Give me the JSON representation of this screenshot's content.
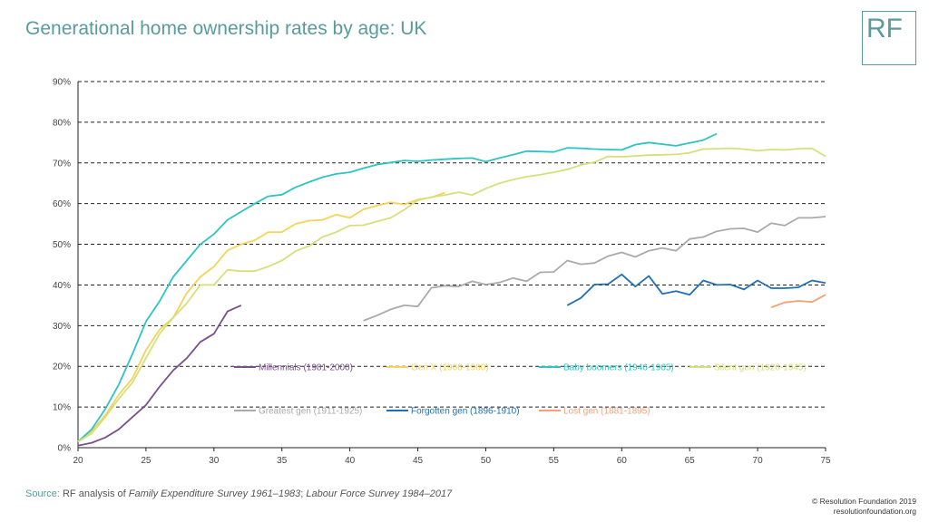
{
  "header": {
    "title": "Generational home ownership rates by age: UK",
    "logo": "RF"
  },
  "footer": {
    "source_label": "Source:",
    "source_text": "RF analysis of ",
    "source_italic_1": "Family Expenditure Survey 1961–1983",
    "source_sep": "; ",
    "source_italic_2": "Labour Force Survey 1984–2017",
    "copyright": "© Resolution Foundation 2019",
    "website": "resolutionfoundation.org"
  },
  "chart_data": {
    "type": "line",
    "title": "Generational home ownership rates by age: UK",
    "xlabel": "",
    "ylabel": "",
    "xlim": [
      20,
      75
    ],
    "ylim": [
      0,
      90
    ],
    "xticks": [
      20,
      25,
      30,
      35,
      40,
      45,
      50,
      55,
      60,
      65,
      70,
      75
    ],
    "yticks": [
      0,
      10,
      20,
      30,
      40,
      50,
      60,
      70,
      80,
      90
    ],
    "ytick_labels": [
      "0%",
      "10%",
      "20%",
      "30%",
      "40%",
      "50%",
      "60%",
      "70%",
      "80%",
      "90%"
    ],
    "grid": "horizontal dashed",
    "legend": "inside-bottom",
    "series": [
      {
        "name": "Millennials (1981-2000)",
        "color": "#7b4f8c",
        "x": [
          20,
          21,
          22,
          23,
          24,
          25,
          26,
          27,
          28,
          29,
          30,
          31,
          32
        ],
        "y": [
          0.5,
          1.2,
          2.5,
          4.5,
          7.5,
          10.5,
          15,
          19,
          22,
          26,
          28,
          33.5,
          35
        ]
      },
      {
        "name": "Gen X (1966-1980)",
        "color": "#f5d35a",
        "x": [
          20,
          21,
          22,
          23,
          24,
          25,
          26,
          27,
          28,
          29,
          30,
          31,
          32,
          33,
          34,
          35,
          36,
          37,
          38,
          39,
          40,
          41,
          42,
          43,
          44,
          45,
          46,
          47
        ],
        "y": [
          1.5,
          4,
          8,
          13,
          17,
          24,
          29,
          32,
          38,
          42,
          44.5,
          48.5,
          50,
          51,
          53,
          53,
          55,
          55.8,
          56,
          57.3,
          56.5,
          58.6,
          59.5,
          60.3,
          59.8,
          61,
          61.5,
          62.7
        ]
      },
      {
        "name": "Baby boomers (1946-1965)",
        "color": "#2ec4c4",
        "x": [
          20,
          21,
          22,
          23,
          24,
          25,
          26,
          27,
          28,
          29,
          30,
          31,
          32,
          33,
          34,
          35,
          36,
          37,
          38,
          39,
          40,
          41,
          42,
          43,
          44,
          45,
          46,
          47,
          48,
          49,
          50,
          51,
          52,
          53,
          54,
          55,
          56,
          57,
          58,
          59,
          60,
          61,
          62,
          63,
          64,
          65,
          66,
          67
        ],
        "y": [
          1.5,
          4.5,
          9.5,
          15.5,
          23,
          31,
          36,
          42,
          46,
          50,
          52.5,
          56,
          58,
          60,
          61.8,
          62.2,
          64,
          65.3,
          66.5,
          67.3,
          67.7,
          68.7,
          69.6,
          70.1,
          70.6,
          70.4,
          70.7,
          70.9,
          71.1,
          71.2,
          70.3,
          71.2,
          72,
          72.9,
          72.8,
          72.7,
          73.7,
          73.6,
          73.4,
          73.3,
          73.2,
          74.5,
          75,
          74.6,
          74.2,
          74.9,
          75.6,
          77.2
        ]
      },
      {
        "name": "Silent gen (1926-1945)",
        "color": "#d4e07a",
        "x": [
          20,
          21,
          22,
          23,
          24,
          25,
          26,
          27,
          28,
          29,
          30,
          31,
          32,
          33,
          34,
          35,
          36,
          37,
          38,
          39,
          40,
          41,
          42,
          43,
          44,
          45,
          46,
          47,
          48,
          49,
          50,
          51,
          52,
          53,
          54,
          55,
          56,
          57,
          58,
          59,
          60,
          61,
          62,
          63,
          64,
          65,
          66,
          67,
          68,
          69,
          70,
          71,
          72,
          73,
          74,
          75
        ],
        "y": [
          1.5,
          3.5,
          7.5,
          12,
          16,
          22,
          28,
          32,
          35.5,
          40,
          40,
          43.7,
          43.4,
          43.4,
          44.5,
          46,
          48.3,
          49.6,
          51.8,
          53,
          54.6,
          54.7,
          55.6,
          56.5,
          58.5,
          60.8,
          61.6,
          62.1,
          62.8,
          62.1,
          63.7,
          65,
          65.9,
          66.6,
          67.1,
          67.7,
          68.4,
          69.5,
          70.2,
          71.6,
          71.5,
          71.7,
          71.9,
          72,
          72.1,
          72.5,
          73.4,
          73.5,
          73.6,
          73.4,
          73,
          73.3,
          73.2,
          73.5,
          73.6,
          71.6
        ]
      },
      {
        "name": "Greatest gen (1911-1925)",
        "color": "#aaaaaa",
        "x": [
          41,
          42,
          43,
          44,
          45,
          46,
          47,
          48,
          49,
          50,
          51,
          52,
          53,
          54,
          55,
          56,
          57,
          58,
          59,
          60,
          61,
          62,
          63,
          64,
          65,
          66,
          67,
          68,
          69,
          70,
          71,
          72,
          73,
          74,
          75
        ],
        "y": [
          31.2,
          32.5,
          34,
          35,
          34.7,
          39.3,
          39.8,
          39.6,
          40.9,
          40.1,
          40.6,
          41.7,
          40.9,
          43.1,
          43.2,
          46,
          45.1,
          45.4,
          47.1,
          48,
          46.9,
          48.4,
          49.1,
          48.4,
          51.3,
          51.8,
          53.2,
          53.8,
          53.9,
          53,
          55.2,
          54.6,
          56.5,
          56.5,
          56.8
        ]
      },
      {
        "name": "Forgotten gen (1896-1910)",
        "color": "#1f6fb5",
        "x": [
          56,
          57,
          58,
          59,
          60,
          61,
          62,
          63,
          64,
          65,
          66,
          67,
          68,
          69,
          70,
          71,
          72,
          73,
          74,
          75
        ],
        "y": [
          35,
          36.8,
          40.1,
          40.2,
          42.6,
          39.6,
          42.2,
          37.8,
          38.5,
          37.6,
          41.1,
          40,
          40.1,
          38.9,
          41.1,
          39.2,
          39.2,
          39.4,
          41.1,
          40.5
        ]
      },
      {
        "name": "Lost gen (1881-1895)",
        "color": "#f4a07a",
        "x": [
          71,
          72,
          73,
          74,
          75
        ],
        "y": [
          34.5,
          35.7,
          36.1,
          35.8,
          37.6
        ]
      }
    ],
    "legend_rows": [
      [
        0,
        1,
        2,
        3
      ],
      [
        4,
        5,
        6
      ]
    ]
  }
}
